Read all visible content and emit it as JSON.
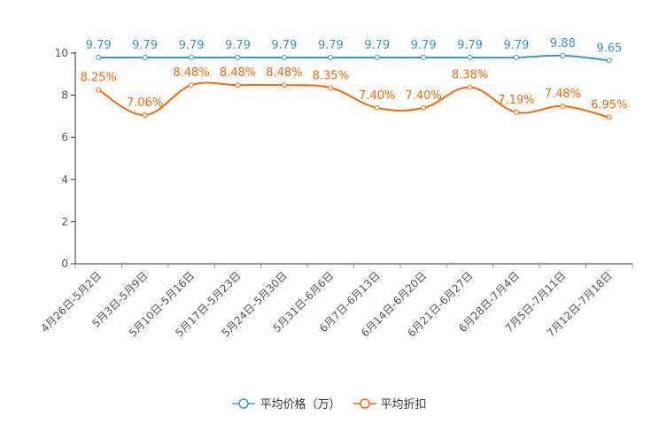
{
  "chart_data": {
    "type": "line",
    "categories": [
      "4月26日-5月2日",
      "5月3日-5月9日",
      "5月10日-5月16日",
      "5月17日-5月23日",
      "5月24日-5月30日",
      "5月31日-6月6日",
      "6月7日-6月13日",
      "6月14日-6月20日",
      "6月21日-6月27日",
      "6月28日-7月4日",
      "7月5日-7月11日",
      "7月12日-7月18日"
    ],
    "ylim": [
      0,
      10
    ],
    "yticks": [
      "0",
      "2",
      "4",
      "6",
      "8",
      "10"
    ],
    "series": [
      {
        "name": "平均价格（万）",
        "color": "#3a96c8",
        "values": [
          9.79,
          9.79,
          9.79,
          9.79,
          9.79,
          9.79,
          9.79,
          9.79,
          9.79,
          9.79,
          9.88,
          9.65
        ],
        "labels": [
          "9.79",
          "9.79",
          "9.79",
          "9.79",
          "9.79",
          "9.79",
          "9.79",
          "9.79",
          "9.79",
          "9.79",
          "9.88",
          "9.65"
        ]
      },
      {
        "name": "平均折扣",
        "color": "#ff6600",
        "values": [
          8.25,
          7.06,
          8.48,
          8.48,
          8.48,
          8.35,
          7.4,
          7.4,
          8.38,
          7.19,
          7.48,
          6.95
        ],
        "labels": [
          "8.25%",
          "7.06%",
          "8.48%",
          "8.48%",
          "8.48%",
          "8.35%",
          "7.40%",
          "7.40%",
          "8.38%",
          "7.19%",
          "7.48%",
          "6.95%"
        ]
      }
    ],
    "legend": "bottom-center"
  }
}
